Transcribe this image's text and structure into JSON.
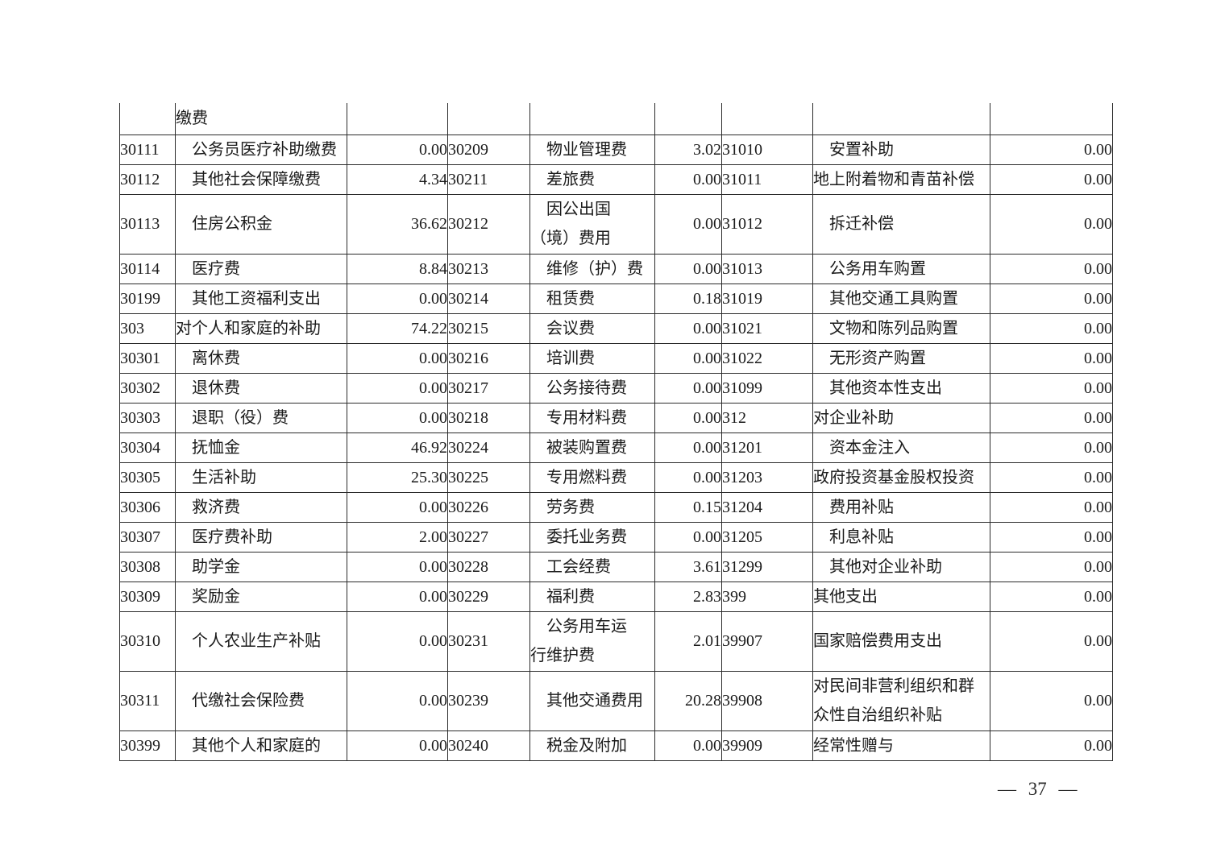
{
  "page": {
    "number_label": "— 37 —"
  },
  "table": {
    "column_kinds": [
      "code",
      "name",
      "amount",
      "code",
      "name",
      "amount",
      "code",
      "name",
      "amount"
    ],
    "rows": [
      [
        "",
        "缴费",
        "",
        "",
        "",
        "",
        "",
        "",
        ""
      ],
      [
        "30111",
        "　公务员医疗补助缴费",
        "0.00",
        "30209",
        "　物业管理费",
        "3.02",
        "31010",
        "　安置补助",
        "0.00"
      ],
      [
        "30112",
        "　其他社会保障缴费",
        "4.34",
        "30211",
        "　差旅费",
        "0.00",
        "31011",
        "地上附着物和青苗补偿",
        "0.00"
      ],
      [
        "30113",
        "　住房公积金",
        "36.62",
        "30212",
        "　因公出国\n（境）费用",
        "0.00",
        "31012",
        "　拆迁补偿",
        "0.00"
      ],
      [
        "30114",
        "　医疗费",
        "8.84",
        "30213",
        "　维修（护）费",
        "0.00",
        "31013",
        "　公务用车购置",
        "0.00"
      ],
      [
        "30199",
        "　其他工资福利支出",
        "0.00",
        "30214",
        "　租赁费",
        "0.18",
        "31019",
        "　其他交通工具购置",
        "0.00"
      ],
      [
        "303",
        "对个人和家庭的补助",
        "74.22",
        "30215",
        "　会议费",
        "0.00",
        "31021",
        "　文物和陈列品购置",
        "0.00"
      ],
      [
        "30301",
        "　离休费",
        "0.00",
        "30216",
        "　培训费",
        "0.00",
        "31022",
        "　无形资产购置",
        "0.00"
      ],
      [
        "30302",
        "　退休费",
        "0.00",
        "30217",
        "　公务接待费",
        "0.00",
        "31099",
        "　其他资本性支出",
        "0.00"
      ],
      [
        "30303",
        "　退职（役）费",
        "0.00",
        "30218",
        "　专用材料费",
        "0.00",
        "312",
        "对企业补助",
        "0.00"
      ],
      [
        "30304",
        "　抚恤金",
        "46.92",
        "30224",
        "　被装购置费",
        "0.00",
        "31201",
        "　资本金注入",
        "0.00"
      ],
      [
        "30305",
        "　生活补助",
        "25.30",
        "30225",
        "　专用燃料费",
        "0.00",
        "31203",
        "政府投资基金股权投资",
        "0.00"
      ],
      [
        "30306",
        "　救济费",
        "0.00",
        "30226",
        "　劳务费",
        "0.15",
        "31204",
        "　费用补贴",
        "0.00"
      ],
      [
        "30307",
        "　医疗费补助",
        "2.00",
        "30227",
        "　委托业务费",
        "0.00",
        "31205",
        "　利息补贴",
        "0.00"
      ],
      [
        "30308",
        "　助学金",
        "0.00",
        "30228",
        "　工会经费",
        "3.61",
        "31299",
        "　其他对企业补助",
        "0.00"
      ],
      [
        "30309",
        "　奖励金",
        "0.00",
        "30229",
        "　福利费",
        "2.83",
        "399",
        "其他支出",
        "0.00"
      ],
      [
        "30310",
        "　个人农业生产补贴",
        "0.00",
        "30231",
        "　公务用车运\n行维护费",
        "2.01",
        "39907",
        "国家赔偿费用支出",
        "0.00"
      ],
      [
        "30311",
        "　代缴社会保险费",
        "0.00",
        "30239",
        "　其他交通费用",
        "20.28",
        "39908",
        "对民间非营利组织和群\n众性自治组织补贴",
        "0.00"
      ],
      [
        "30399",
        "　其他个人和家庭的",
        "0.00",
        "30240",
        "　税金及附加",
        "0.00",
        "39909",
        "经常性赠与",
        "0.00"
      ]
    ]
  }
}
